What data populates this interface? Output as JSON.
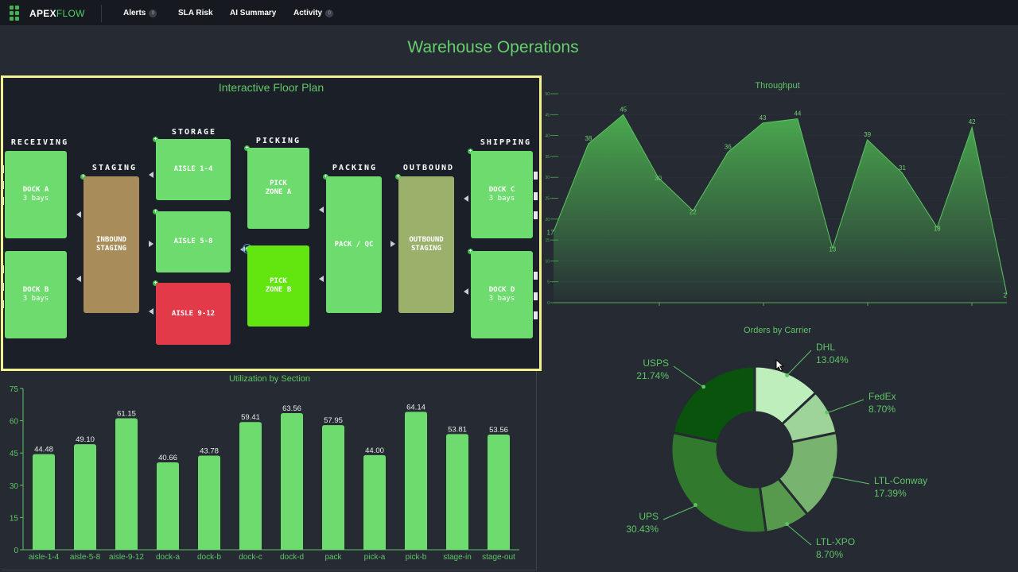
{
  "brand": {
    "name_bold": "APEX",
    "name_light": "FLOW"
  },
  "nav": [
    {
      "label": "Alerts",
      "badge": "0"
    },
    {
      "label": "SLA Risk"
    },
    {
      "label": "AI Summary"
    },
    {
      "label": "Activity",
      "badge": "0"
    }
  ],
  "page_title": "Warehouse Operations",
  "floor_plan": {
    "title": "Interactive Floor Plan",
    "sections": {
      "receiving": "RECEIVING",
      "staging": "STAGING",
      "storage": "STORAGE",
      "picking": "PICKING",
      "packing": "PACKING",
      "outbound": "OUTBOUND",
      "shipping": "SHIPPING"
    },
    "zones": {
      "dock_a": {
        "label": "DOCK A",
        "sub": "3 bays",
        "color": "#6ddb6e"
      },
      "dock_b": {
        "label": "DOCK B",
        "sub": "3 bays",
        "color": "#6ddb6e"
      },
      "inbound_staging": {
        "label": "INBOUND\nSTAGING",
        "color": "#a88c5a"
      },
      "aisle_1_4": {
        "label": "AISLE 1-4",
        "color": "#6ddb6e"
      },
      "aisle_5_8": {
        "label": "AISLE 5-8",
        "color": "#6ddb6e"
      },
      "aisle_9_12": {
        "label": "AISLE 9-12",
        "color": "#e23a48"
      },
      "pick_zone_a": {
        "label": "PICK\nZONE A",
        "color": "#6ddb6e"
      },
      "pick_zone_b": {
        "label": "PICK\nZONE B",
        "color": "#63e60f"
      },
      "pack_qc": {
        "label": "PACK / QC",
        "color": "#6ddb6e"
      },
      "outbound_staging": {
        "label": "OUTBOUND\nSTAGING",
        "color": "#9ab06b"
      },
      "dock_c": {
        "label": "DOCK C",
        "sub": "3 bays",
        "color": "#6ddb6e"
      },
      "dock_d": {
        "label": "DOCK D",
        "sub": "3 bays",
        "color": "#6ddb6e"
      }
    }
  },
  "chart_data": [
    {
      "type": "area",
      "title": "Throughput",
      "xlabel": "",
      "ylabel": "",
      "ylim": [
        0,
        50
      ],
      "y_ticks": [
        0,
        5,
        10,
        15,
        20,
        25,
        30,
        35,
        40,
        45,
        50
      ],
      "values": [
        17,
        38,
        45,
        30,
        22,
        36,
        43,
        44,
        13,
        39,
        31,
        18,
        42,
        2
      ],
      "value_labels": [
        "17",
        "38",
        "45",
        "30",
        "22",
        "36",
        "43",
        "44",
        "13",
        "39",
        "31",
        "18",
        "42",
        "2"
      ],
      "grid": true,
      "color": "#4caf50"
    },
    {
      "type": "pie",
      "title": "Orders by Carrier",
      "donut": true,
      "slices": [
        {
          "name": "DHL",
          "value": 13.04,
          "label": "13.04%",
          "color": "#bdeebb"
        },
        {
          "name": "FedEx",
          "value": 8.7,
          "label": "8.70%",
          "color": "#9ed49a"
        },
        {
          "name": "LTL-Conway",
          "value": 17.39,
          "label": "17.39%",
          "color": "#78b46f"
        },
        {
          "name": "LTL-XPO",
          "value": 8.7,
          "label": "8.70%",
          "color": "#579a4d"
        },
        {
          "name": "UPS",
          "value": 30.43,
          "label": "30.43%",
          "color": "#31792d"
        },
        {
          "name": "USPS",
          "value": 21.74,
          "label": "21.74%",
          "color": "#09530c"
        }
      ]
    },
    {
      "type": "bar",
      "title": "Utilization by Section",
      "categories": [
        "aisle-1-4",
        "aisle-5-8",
        "aisle-9-12",
        "dock-a",
        "dock-b",
        "dock-c",
        "dock-d",
        "pack",
        "pick-a",
        "pick-b",
        "stage-in",
        "stage-out"
      ],
      "values": [
        44.48,
        49.1,
        61.15,
        40.66,
        43.78,
        59.41,
        63.56,
        57.95,
        44.0,
        64.14,
        53.81,
        53.56
      ],
      "value_labels": [
        "44.48",
        "49.10",
        "61.15",
        "40.66",
        "43.78",
        "59.41",
        "63.56",
        "57.95",
        "44.00",
        "64.14",
        "53.81",
        "53.56"
      ],
      "ylim": [
        0,
        75
      ],
      "y_ticks": [
        0,
        15,
        30,
        45,
        60,
        75
      ],
      "xlabel": "",
      "ylabel": "",
      "color": "#6ddb6e"
    }
  ]
}
